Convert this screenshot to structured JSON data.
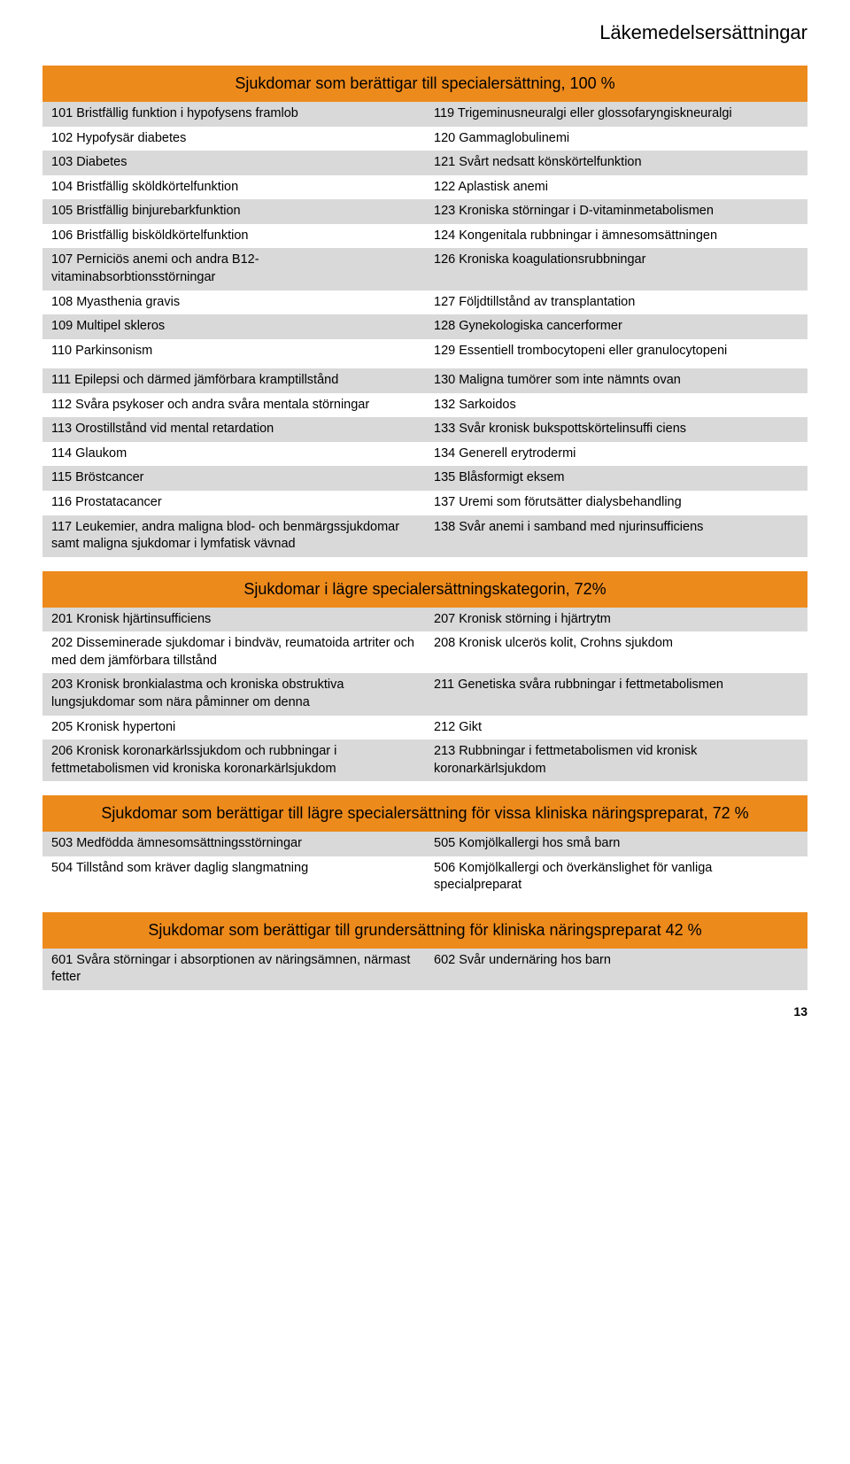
{
  "header": "Läkemedelsersättningar",
  "pageNumber": "13",
  "colors": {
    "titleBg": "#ed8a1c",
    "rowBg": "#d9d9d9",
    "altRowBg": "#ffffff",
    "text": "#000000"
  },
  "tables": [
    {
      "title": "Sjukdomar som berättigar till specialersättning, 100 %",
      "rows": [
        [
          "101 Bristfällig funktion i hypofysens framlob",
          "119 Trigeminusneuralgi eller glossofaryngiskneuralgi"
        ],
        [
          "102 Hypofysär diabetes",
          "120 Gammaglobulinemi"
        ],
        [
          "103 Diabetes",
          "121 Svårt nedsatt könskörtelfunktion"
        ],
        [
          "104 Bristfällig sköldkörtelfunktion",
          "122 Aplastisk anemi"
        ],
        [
          "105 Bristfällig binjurebarkfunktion",
          "123 Kroniska störningar i D-vitaminmetabolismen"
        ],
        [
          "106 Bristfällig bisköldkörtelfunktion",
          "124 Kongenitala rubbningar i ämnesomsättningen"
        ],
        [
          "107 Perniciös anemi och andra B12-vitaminabsorbtionsstörningar",
          "126 Kroniska koagulationsrubbningar"
        ],
        [
          "108 Myasthenia gravis",
          "127 Följdtillstånd av transplantation"
        ],
        [
          "109 Multipel skleros",
          "128 Gynekologiska cancerformer"
        ],
        [
          "110 Parkinsonism",
          "129 Essentiell trombocytopeni eller granulocytopeni"
        ]
      ],
      "rows2": [
        [
          "111 Epilepsi och därmed jämförbara kramptillstånd",
          "130 Maligna tumörer som inte nämnts ovan"
        ],
        [
          "112 Svåra psykoser och andra svåra mentala störningar",
          "132 Sarkoidos"
        ],
        [
          "113 Orostillstånd vid mental retardation",
          "133 Svår kronisk bukspottskörtelinsuffi ciens"
        ],
        [
          "114 Glaukom",
          "134 Generell erytrodermi"
        ],
        [
          "115 Bröstcancer",
          "135 Blåsformigt eksem"
        ],
        [
          "116 Prostatacancer",
          "137 Uremi som förutsätter dialysbehandling"
        ],
        [
          "117 Leukemier, andra maligna blod- och benmärgssjukdomar samt maligna sjukdomar i lymfatisk vävnad",
          "138 Svår anemi i samband med njurinsufficiens"
        ]
      ]
    },
    {
      "title": "Sjukdomar i lägre specialersättningskategorin, 72%",
      "rows": [
        [
          "201 Kronisk hjärtinsufficiens",
          "207 Kronisk störning i hjärtrytm"
        ],
        [
          "202 Disseminerade sjukdomar i bindväv, reumatoida artriter och med dem jämförbara tillstånd",
          "208 Kronisk ulcerös kolit, Crohns sjukdom"
        ],
        [
          "203 Kronisk bronkialastma och kroniska obstruktiva lungsjukdomar som nära påminner om denna",
          "211 Genetiska svåra rubbningar i fettmetabolismen"
        ],
        [
          "205 Kronisk hypertoni",
          "212 Gikt"
        ],
        [
          "206 Kronisk koronarkärlssjukdom och rubbningar i fettmetabolismen vid kroniska koronarkärlsjukdom",
          "213 Rubbningar i fettmetabolismen vid kronisk koronarkärlsjukdom"
        ]
      ]
    },
    {
      "title": "Sjukdomar som berättigar till lägre specialersättning för vissa kliniska näringspreparat, 72 %",
      "rows": [
        [
          "503 Medfödda ämnesomsättningsstörningar",
          "505 Komjölkallergi hos små barn"
        ],
        [
          "504 Tillstånd som kräver daglig slangmatning",
          "506 Komjölkallergi och överkänslighet för vanliga specialpreparat"
        ]
      ]
    },
    {
      "title": "Sjukdomar som berättigar till grundersättning för kliniska näringspreparat 42 %",
      "rows": [
        [
          "601 Svåra störningar i absorptionen av näringsämnen, närmast fetter",
          "602 Svår undernäring hos barn"
        ]
      ]
    }
  ]
}
